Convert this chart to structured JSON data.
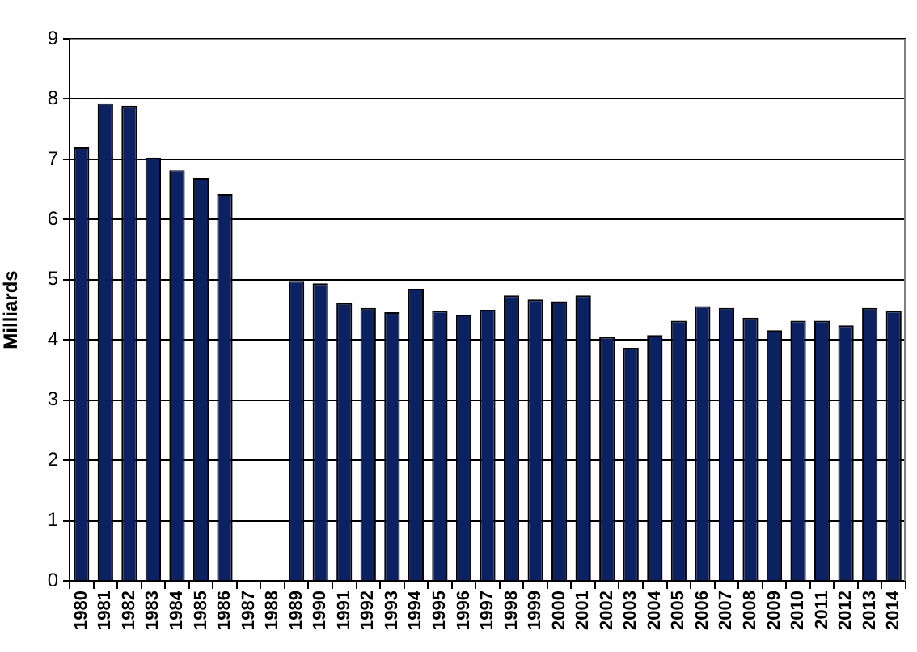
{
  "chart_data": {
    "type": "bar",
    "ylabel": "Milliards",
    "categories": [
      "1980",
      "1981",
      "1982",
      "1983",
      "1984",
      "1985",
      "1986",
      "1987",
      "1988",
      "1989",
      "1990",
      "1991",
      "1992",
      "1993",
      "1994",
      "1995",
      "1996",
      "1997",
      "1998",
      "1999",
      "2000",
      "2001",
      "2002",
      "2003",
      "2004",
      "2005",
      "2006",
      "2007",
      "2008",
      "2009",
      "2010",
      "2011",
      "2012",
      "2013",
      "2014"
    ],
    "values": [
      7.2,
      7.93,
      7.89,
      7.03,
      6.82,
      6.69,
      6.42,
      null,
      null,
      4.98,
      4.94,
      4.61,
      4.53,
      4.46,
      4.85,
      4.48,
      4.42,
      4.5,
      4.74,
      4.67,
      4.64,
      4.74,
      4.05,
      3.87,
      4.08,
      4.32,
      4.56,
      4.53,
      4.37,
      4.16,
      4.32,
      4.32,
      4.24,
      4.53,
      4.48
    ],
    "color": "#0b2161",
    "ylim": [
      0,
      9
    ],
    "yticks": [
      0,
      1,
      2,
      3,
      4,
      5,
      6,
      7,
      8,
      9
    ],
    "grid": "y",
    "legend": false
  }
}
